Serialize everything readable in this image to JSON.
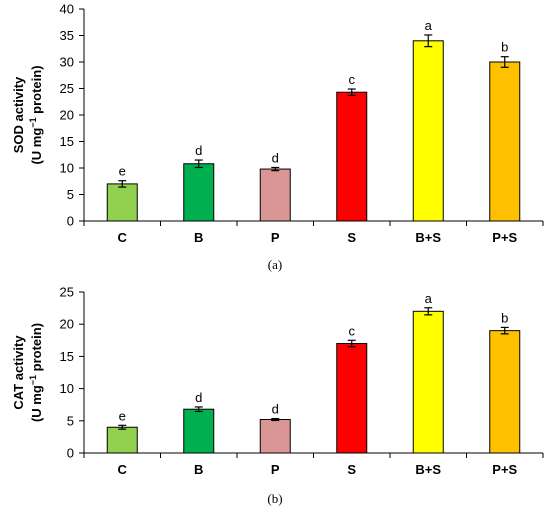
{
  "chart_data": [
    {
      "type": "bar",
      "panel_label": "(a)",
      "ylabel_line1": "SOD activity",
      "ylabel_line2_parts": [
        "(U mg",
        "−1",
        " protein)"
      ],
      "categories": [
        "C",
        "B",
        "P",
        "S",
        "B+S",
        "P+S"
      ],
      "values": [
        7.0,
        10.8,
        9.8,
        24.3,
        34.0,
        30.0
      ],
      "errors": [
        0.6,
        0.7,
        0.3,
        0.6,
        1.1,
        1.0
      ],
      "significance": [
        "e",
        "d",
        "d",
        "c",
        "a",
        "b"
      ],
      "colors": [
        "#92d050",
        "#00b050",
        "#d99694",
        "#ff0000",
        "#ffff00",
        "#ffc000"
      ],
      "ylim": [
        0,
        40
      ],
      "yticks": [
        0,
        5,
        10,
        15,
        20,
        25,
        30,
        35,
        40
      ],
      "grid": false
    },
    {
      "type": "bar",
      "panel_label": "(b)",
      "ylabel_line1": "CAT activity",
      "ylabel_line2_parts": [
        "(U mg",
        "−1",
        " protein)"
      ],
      "categories": [
        "C",
        "B",
        "P",
        "S",
        "B+S",
        "P+S"
      ],
      "values": [
        4.0,
        6.8,
        5.2,
        17.0,
        22.0,
        19.0
      ],
      "errors": [
        0.3,
        0.35,
        0.15,
        0.5,
        0.55,
        0.5
      ],
      "significance": [
        "e",
        "d",
        "d",
        "c",
        "a",
        "b"
      ],
      "colors": [
        "#92d050",
        "#00b050",
        "#d99694",
        "#ff0000",
        "#ffff00",
        "#ffc000"
      ],
      "ylim": [
        0,
        25
      ],
      "yticks": [
        0,
        5,
        10,
        15,
        20,
        25
      ],
      "grid": false
    }
  ]
}
